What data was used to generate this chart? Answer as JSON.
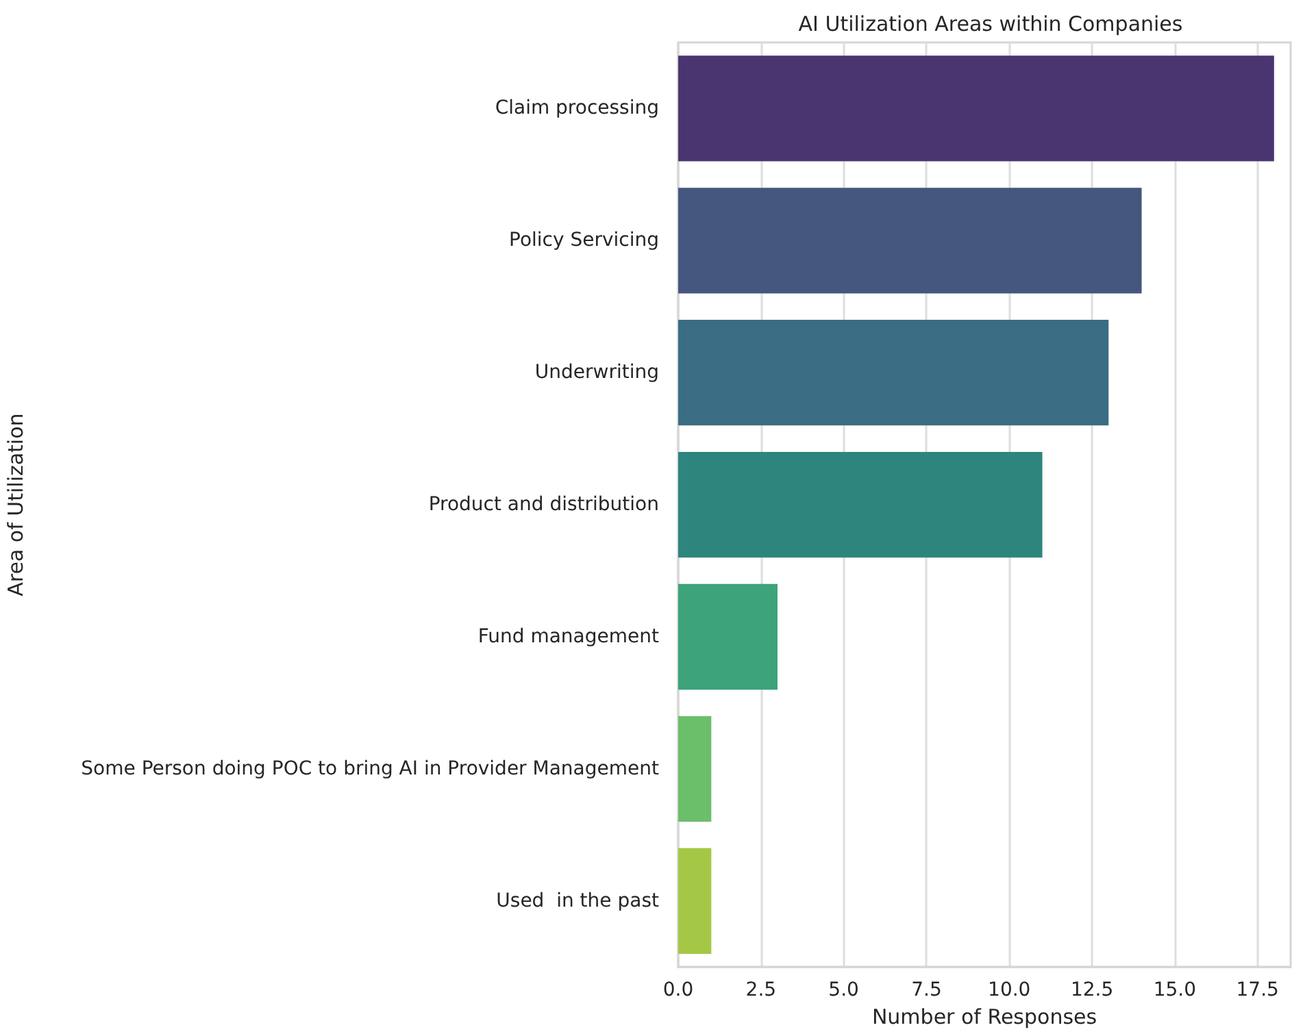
{
  "chart_data": {
    "type": "bar",
    "orientation": "horizontal",
    "title": "AI Utilization Areas within Companies",
    "xlabel": "Number of Responses",
    "ylabel": "Area of Utilization",
    "categories": [
      "Claim processing",
      "Policy Servicing",
      "Underwriting",
      "Product and distribution",
      "Fund management",
      "Some Person doing POC to bring AI in Provider Management",
      "Used  in the past"
    ],
    "values": [
      18,
      14,
      13,
      11,
      3,
      1,
      1
    ],
    "colors": [
      "#4b3570",
      "#45567f",
      "#3a6d83",
      "#2e857e",
      "#3ca37a",
      "#6bbf6b",
      "#a4c745"
    ],
    "xlim": [
      0,
      18.5
    ],
    "xticks": [
      {
        "value": 0,
        "label": "0.0"
      },
      {
        "value": 2.5,
        "label": "2.5"
      },
      {
        "value": 5,
        "label": "5.0"
      },
      {
        "value": 7.5,
        "label": "7.5"
      },
      {
        "value": 10,
        "label": "10.0"
      },
      {
        "value": 12.5,
        "label": "12.5"
      },
      {
        "value": 15,
        "label": "15.0"
      },
      {
        "value": 17.5,
        "label": "17.5"
      }
    ],
    "grid": "x"
  }
}
